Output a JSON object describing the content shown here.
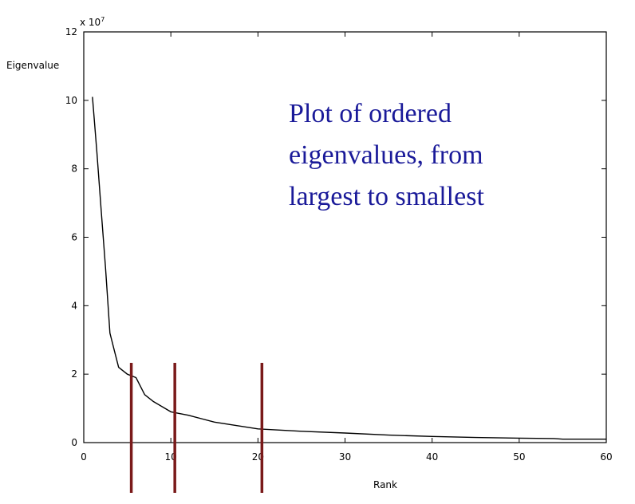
{
  "chart_data": {
    "type": "line",
    "xlabel": "Rank",
    "ylabel": "Eigenvalue",
    "y_multiplier": "x 10",
    "y_multiplier_exponent": "7",
    "xlim": [
      0,
      60
    ],
    "ylim": [
      0,
      12
    ],
    "xticks": [
      0,
      10,
      20,
      30,
      40,
      50,
      60
    ],
    "yticks": [
      0,
      2,
      4,
      6,
      8,
      10,
      12
    ],
    "grid": false,
    "series": [
      {
        "x": [
          1,
          1.5,
          2,
          2.5,
          3,
          3.5,
          4,
          5,
          6,
          7,
          8,
          10,
          12,
          15,
          20,
          25,
          30,
          35,
          40,
          45,
          50,
          54,
          55,
          60
        ],
        "y": [
          10.1,
          8.5,
          6.8,
          5.1,
          3.2,
          2.7,
          2.2,
          2.0,
          1.9,
          1.4,
          1.2,
          0.9,
          0.8,
          0.6,
          0.4,
          0.33,
          0.28,
          0.22,
          0.18,
          0.15,
          0.13,
          0.12,
          0.1,
          0.1
        ]
      }
    ],
    "markers": [
      {
        "x": 5,
        "color": "#7a1a1a"
      },
      {
        "x": 10,
        "color": "#7a1a1a"
      },
      {
        "x": 20,
        "color": "#7a1a1a"
      }
    ],
    "annotation": {
      "lines": [
        "Plot of ordered",
        "eigenvalues, from",
        "largest to smallest"
      ],
      "color": "#1a1a99"
    }
  }
}
